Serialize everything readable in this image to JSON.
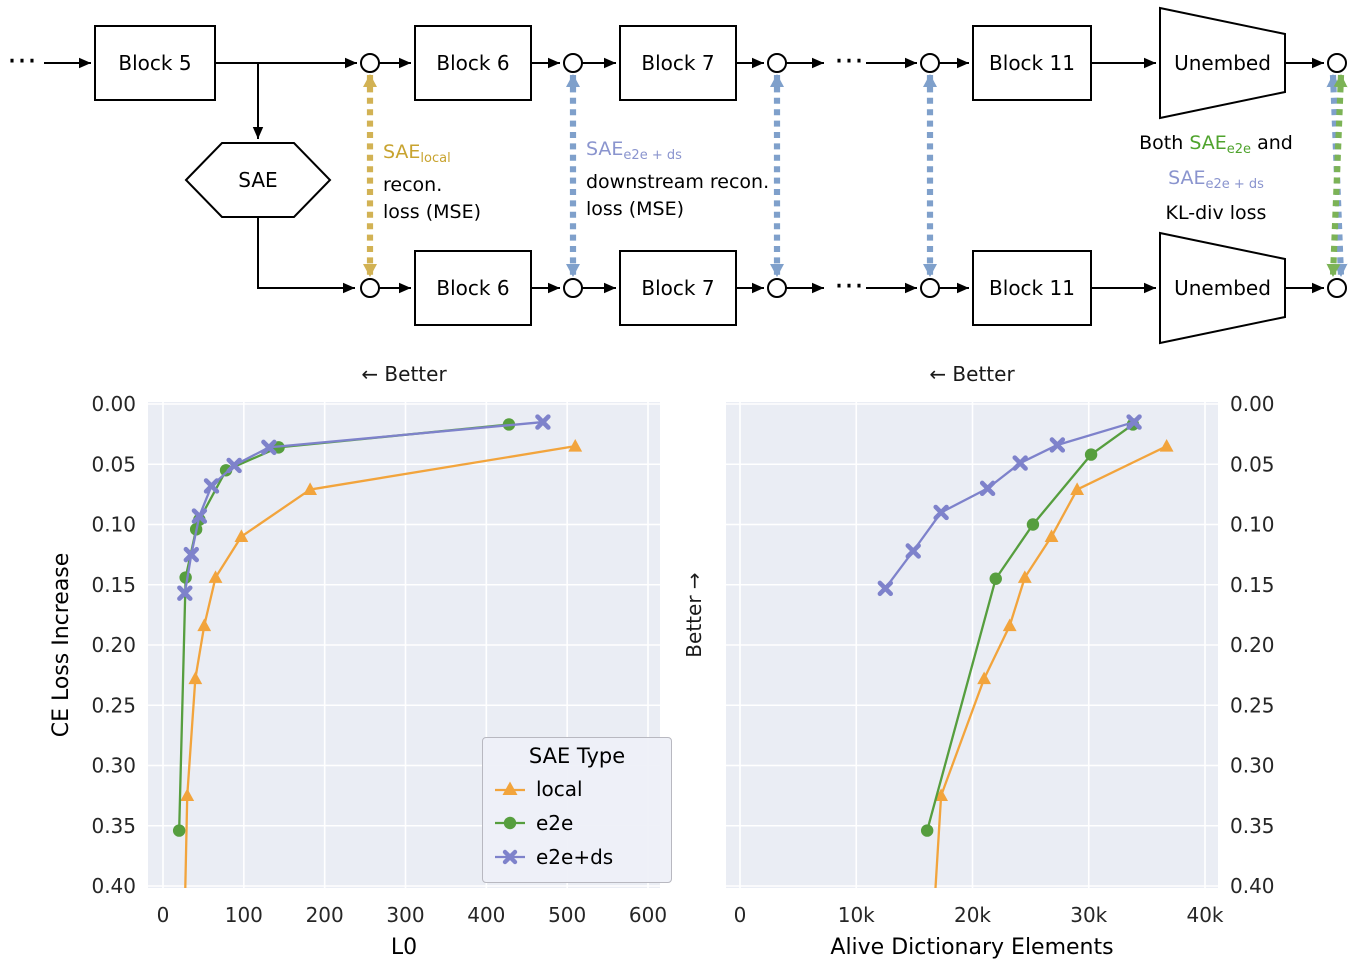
{
  "diagram": {
    "ellipsis": "⋯",
    "blocks": {
      "b5": "Block 5",
      "b6": "Block 6",
      "b7": "Block 7",
      "b11": "Block 11",
      "unembed": "Unembed",
      "sae": "SAE"
    },
    "loss_local": {
      "sae_main": "SAE",
      "sae_sub": "local",
      "line2": "recon.",
      "line3": "loss (MSE)"
    },
    "loss_downstream": {
      "sae_main": "SAE",
      "sae_sub": "e2e + ds",
      "line2": "downstream recon.",
      "line3": "loss (MSE)"
    },
    "loss_kl": {
      "both": "Both ",
      "sae_e2e_main": "SAE",
      "sae_e2e_sub": "e2e",
      "and": " and",
      "sae_ds_main": "SAE",
      "sae_ds_sub": "e2e + ds",
      "line3": "KL-div loss"
    },
    "colors": {
      "arrow_tan": "#d2b254",
      "arrow_blue": "#7fa0cb",
      "arrow_green": "#7cb356"
    }
  },
  "chart_data": [
    {
      "type": "line",
      "annotation": "← Better",
      "xlabel": "L0",
      "ylabel": "CE Loss Increase",
      "xlim": [
        0,
        600
      ],
      "ylim": [
        0.0,
        0.4
      ],
      "grid": true,
      "xticks": [
        0,
        100,
        200,
        300,
        400,
        500,
        600
      ],
      "xtick_labels": [
        "0",
        "100",
        "200",
        "300",
        "400",
        "500",
        "600"
      ],
      "yticks": [
        0.0,
        0.05,
        0.1,
        0.15,
        0.2,
        0.25,
        0.3,
        0.35,
        0.4
      ],
      "ytick_labels": [
        "0.00",
        "0.05",
        "0.10",
        "0.15",
        "0.20",
        "0.25",
        "0.30",
        "0.35",
        "0.40"
      ],
      "y_axis_side": "left",
      "legend": {
        "title": "SAE Type",
        "entries": [
          {
            "label": "local",
            "marker": "triangle",
            "color": "#f2a43c"
          },
          {
            "label": "e2e",
            "marker": "circle",
            "color": "#569e3e"
          },
          {
            "label": "e2e+ds",
            "marker": "x",
            "color": "#7e82cb"
          }
        ]
      },
      "series": [
        {
          "name": "local",
          "marker": "triangle",
          "color": "#f2a43c",
          "points": [
            [
              510,
              0.035
            ],
            [
              182,
              0.071
            ],
            [
              97,
              0.11
            ],
            [
              65,
              0.144
            ],
            [
              51,
              0.184
            ],
            [
              40,
              0.228
            ],
            [
              30,
              0.325
            ],
            [
              27,
              0.42
            ]
          ]
        },
        {
          "name": "e2e",
          "marker": "circle",
          "color": "#569e3e",
          "points": [
            [
              428,
              0.017
            ],
            [
              143,
              0.036
            ],
            [
              78,
              0.055
            ],
            [
              45,
              0.096
            ],
            [
              41,
              0.104
            ],
            [
              28,
              0.144
            ],
            [
              20,
              0.354
            ]
          ]
        },
        {
          "name": "e2e+ds",
          "marker": "x",
          "color": "#7e82cb",
          "points": [
            [
              470,
              0.015
            ],
            [
              131,
              0.036
            ],
            [
              88,
              0.051
            ],
            [
              60,
              0.068
            ],
            [
              45,
              0.093
            ],
            [
              35,
              0.125
            ],
            [
              27,
              0.157
            ]
          ]
        }
      ]
    },
    {
      "type": "line",
      "annotation": "← Better",
      "side_annotation": "Better →",
      "xlabel": "Alive Dictionary Elements",
      "ylabel": "",
      "xlim": [
        0,
        40000
      ],
      "ylim": [
        0.0,
        0.4
      ],
      "grid": true,
      "xticks": [
        0,
        10000,
        20000,
        30000,
        40000
      ],
      "xtick_labels": [
        "0",
        "10k",
        "20k",
        "30k",
        "40k"
      ],
      "yticks": [
        0.0,
        0.05,
        0.1,
        0.15,
        0.2,
        0.25,
        0.3,
        0.35,
        0.4
      ],
      "ytick_labels": [
        "0.00",
        "0.05",
        "0.10",
        "0.15",
        "0.20",
        "0.25",
        "0.30",
        "0.35",
        "0.40"
      ],
      "y_axis_side": "right",
      "series": [
        {
          "name": "local",
          "marker": "triangle",
          "color": "#f2a43c",
          "points": [
            [
              36700,
              0.035
            ],
            [
              29000,
              0.071
            ],
            [
              26800,
              0.11
            ],
            [
              24500,
              0.144
            ],
            [
              23200,
              0.184
            ],
            [
              21000,
              0.228
            ],
            [
              17300,
              0.325
            ],
            [
              16700,
              0.42
            ]
          ]
        },
        {
          "name": "e2e",
          "marker": "circle",
          "color": "#569e3e",
          "points": [
            [
              33800,
              0.017
            ],
            [
              30200,
              0.042
            ],
            [
              25200,
              0.1
            ],
            [
              22000,
              0.145
            ],
            [
              16100,
              0.354
            ]
          ]
        },
        {
          "name": "e2e+ds",
          "marker": "x",
          "color": "#7e82cb",
          "points": [
            [
              33900,
              0.015
            ],
            [
              27300,
              0.034
            ],
            [
              24100,
              0.049
            ],
            [
              21300,
              0.07
            ],
            [
              17300,
              0.09
            ],
            [
              14900,
              0.122
            ],
            [
              12500,
              0.153
            ]
          ]
        }
      ]
    }
  ]
}
